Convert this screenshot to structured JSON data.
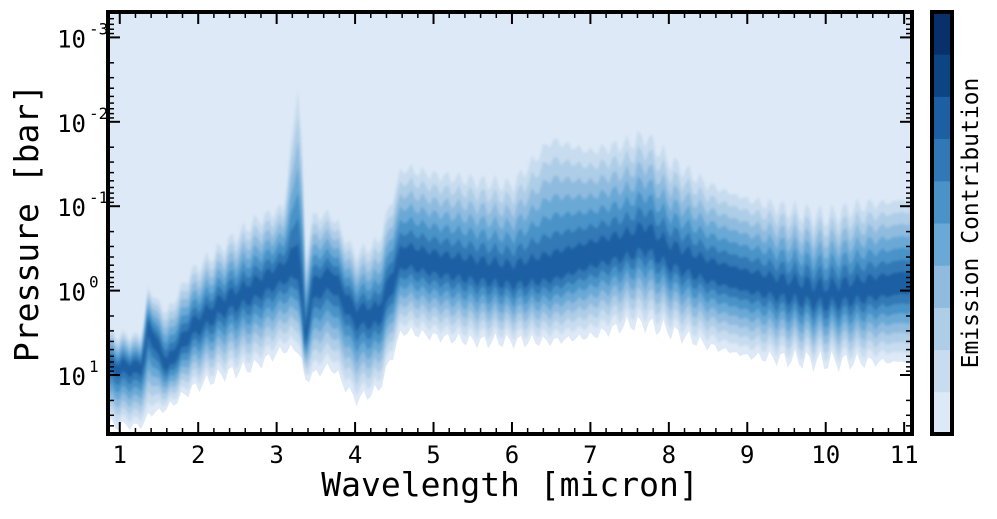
{
  "chart_data": {
    "type": "heatmap",
    "title": "",
    "xlabel": "Wavelength [micron]",
    "ylabel": "Pressure [bar]",
    "colorbar_label": "Emission Contribution",
    "xlim": [
      0.85,
      11.1
    ],
    "ylim_bar": [
      50,
      0.0005
    ],
    "y_scale": "log",
    "y_inverted": true,
    "grid": false,
    "x_ticks": [
      {
        "value": 1,
        "label": "1"
      },
      {
        "value": 2,
        "label": "2"
      },
      {
        "value": 3,
        "label": "3"
      },
      {
        "value": 4,
        "label": "4"
      },
      {
        "value": 5,
        "label": "5"
      },
      {
        "value": 6,
        "label": "6"
      },
      {
        "value": 7,
        "label": "7"
      },
      {
        "value": 8,
        "label": "8"
      },
      {
        "value": 9,
        "label": "9"
      },
      {
        "value": 10,
        "label": "10"
      },
      {
        "value": 11,
        "label": "11"
      }
    ],
    "y_ticks": [
      {
        "value": 0.001,
        "base": "10",
        "exp": "-3"
      },
      {
        "value": 0.01,
        "base": "10",
        "exp": "-2"
      },
      {
        "value": 0.1,
        "base": "10",
        "exp": "-1"
      },
      {
        "value": 1,
        "base": "10",
        "exp": "0"
      },
      {
        "value": 10,
        "base": "10",
        "exp": "1"
      }
    ],
    "colormap": [
      "#dde9f6",
      "#c8dcef",
      "#aecde7",
      "#8fbbdf",
      "#6aa9d6",
      "#4a93c8",
      "#3179b6",
      "#1c5fa3",
      "#0d4584",
      "#08306b"
    ],
    "colorbar_levels": 10,
    "contribution_band": {
      "wavelength": [
        0.85,
        1.3,
        1.35,
        1.6,
        1.9,
        2.3,
        2.7,
        3.1,
        3.3,
        3.35,
        3.45,
        3.7,
        4.0,
        4.3,
        4.6,
        5.0,
        5.5,
        6.0,
        6.5,
        7.0,
        7.5,
        7.7,
        8.0,
        8.5,
        9.0,
        9.5,
        10.0,
        10.5,
        11.1
      ],
      "peak_pressure_bar": [
        8,
        8,
        2.5,
        8,
        3,
        1.5,
        1,
        0.6,
        0.5,
        5,
        1,
        0.7,
        2,
        2,
        0.4,
        0.5,
        0.6,
        0.7,
        0.6,
        0.4,
        0.3,
        0.25,
        0.4,
        0.6,
        0.8,
        1.0,
        1.2,
        1.0,
        0.8
      ],
      "top_pressure_bar": [
        3,
        3,
        0.8,
        1.5,
        0.5,
        0.25,
        0.12,
        0.08,
        0.001,
        0.5,
        0.1,
        0.1,
        0.3,
        0.2,
        0.025,
        0.03,
        0.035,
        0.04,
        0.01,
        0.015,
        0.012,
        0.01,
        0.02,
        0.04,
        0.06,
        0.08,
        0.1,
        0.07,
        0.06
      ],
      "bottom_pressure_bar": [
        40,
        40,
        30,
        25,
        15,
        10,
        8,
        5,
        5,
        12,
        10,
        8,
        20,
        15,
        3,
        3.5,
        4,
        4,
        4,
        3.5,
        2.5,
        2.5,
        3,
        4.5,
        6,
        6.5,
        7,
        7,
        7
      ]
    }
  }
}
